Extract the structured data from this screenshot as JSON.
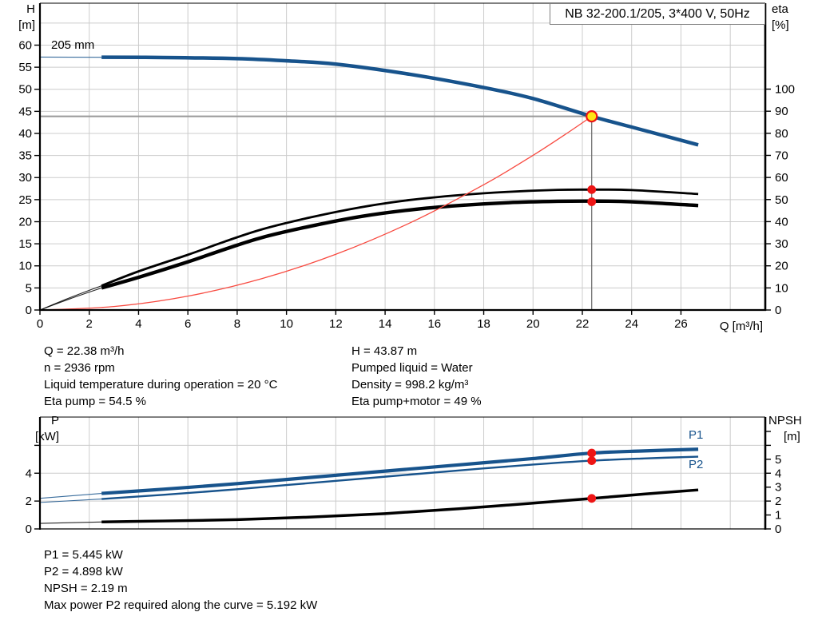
{
  "title_box": {
    "text": "NB 32-200.1/205, 3*400 V, 50Hz"
  },
  "labels": {
    "h_axis": "H",
    "h_unit": "[m]",
    "eta_axis": "eta",
    "eta_unit": "[%]",
    "q_axis": "Q [m³/h]",
    "p_axis": "P",
    "p_unit": "[kW]",
    "npsh_axis": "NPSH",
    "npsh_unit": "[m]",
    "impeller": "205 mm",
    "p1_curve": "P1",
    "p2_curve": "P2"
  },
  "colors": {
    "curve_blue": "#17538c",
    "curve_black": "#000000",
    "system_red": "#f84a40",
    "marker_red": "#ed1515",
    "duty_yellow": "#ffe616",
    "grid": "#cccccc",
    "duty_gray": "#999999",
    "duty_dark": "#666666",
    "axis": "#000000"
  },
  "info_top": {
    "left": [
      "Q = 22.38 m³/h",
      "n = 2936 rpm",
      "Liquid temperature during operation = 20 °C",
      "Eta pump = 54.5 %"
    ],
    "right": [
      "H = 43.87 m",
      "Pumped liquid = Water",
      "Density = 998.2 kg/m³",
      "Eta pump+motor = 49 %"
    ]
  },
  "info_bottom": [
    "P1 = 5.445 kW",
    "P2 = 4.898 kW",
    "NPSH = 2.19 m",
    "Max power P2 required along the curve = 5.192 kW"
  ],
  "chart_data": [
    {
      "type": "line",
      "title": "NB 32-200.1/205, 3*400 V, 50Hz",
      "xlabel": "Q [m³/h]",
      "ylabel_left": "H [m]",
      "ylabel_right": "eta [%]",
      "xlim": [
        0,
        29.42
      ],
      "ylim_left": [
        0,
        69.5
      ],
      "ylim_right": [
        0,
        138.9
      ],
      "grid": true,
      "legend_position": "none",
      "xticks": [
        [
          0,
          "0"
        ],
        [
          2,
          "2"
        ],
        [
          4,
          "4"
        ],
        [
          6,
          "6"
        ],
        [
          8,
          "8"
        ],
        [
          10,
          "10"
        ],
        [
          12,
          "12"
        ],
        [
          14,
          "14"
        ],
        [
          16,
          "16"
        ],
        [
          18,
          "18"
        ],
        [
          20,
          "20"
        ],
        [
          22,
          "22"
        ],
        [
          24,
          "24"
        ],
        [
          26,
          "26"
        ]
      ],
      "yticks_left": [
        [
          0,
          "0"
        ],
        [
          5,
          "5"
        ],
        [
          10,
          "10"
        ],
        [
          15,
          "15"
        ],
        [
          20,
          "20"
        ],
        [
          25,
          "25"
        ],
        [
          30,
          "30"
        ],
        [
          35,
          "35"
        ],
        [
          40,
          "40"
        ],
        [
          45,
          "45"
        ],
        [
          50,
          "50"
        ],
        [
          55,
          "55"
        ],
        [
          60,
          "60"
        ]
      ],
      "yticks_right": [
        [
          0,
          "0"
        ],
        [
          10,
          "10"
        ],
        [
          20,
          "20"
        ],
        [
          30,
          "30"
        ],
        [
          40,
          "40"
        ],
        [
          50,
          "50"
        ],
        [
          60,
          "60"
        ],
        [
          70,
          "70"
        ],
        [
          80,
          "80"
        ],
        [
          90,
          "90"
        ],
        [
          100,
          "100"
        ]
      ],
      "grid_x": [
        2,
        4,
        6,
        8,
        10,
        12,
        14,
        16,
        18,
        20,
        22,
        24,
        26,
        28
      ],
      "grid_y": [
        5,
        10,
        15,
        20,
        25,
        30,
        35,
        40,
        45,
        50,
        55,
        60,
        65
      ],
      "series": [
        {
          "name": "head-curve-205mm",
          "axis": "left",
          "color": "curve_blue",
          "width": 4.5,
          "thin_to": 2.5,
          "points": [
            [
              0,
              57.3
            ],
            [
              2.5,
              57.25
            ],
            [
              5,
              57.2
            ],
            [
              8,
              56.95
            ],
            [
              10,
              56.45
            ],
            [
              12,
              55.7
            ],
            [
              15,
              53.4
            ],
            [
              18,
              50.4
            ],
            [
              20,
              47.9
            ],
            [
              22.38,
              43.87
            ],
            [
              24.5,
              40.7
            ],
            [
              26.7,
              37.4
            ]
          ]
        },
        {
          "name": "eta-pump",
          "axis": "right",
          "color": "curve_black",
          "width": 2.8,
          "thin_to": 2.5,
          "points": [
            [
              0,
              0
            ],
            [
              1.2,
              5.5
            ],
            [
              2.5,
              11
            ],
            [
              4,
              17.5
            ],
            [
              6,
              25
            ],
            [
              7.5,
              31
            ],
            [
              9,
              36.5
            ],
            [
              11,
              42
            ],
            [
              13,
              46.5
            ],
            [
              15,
              49.8
            ],
            [
              17,
              52
            ],
            [
              19,
              53.5
            ],
            [
              21,
              54.4
            ],
            [
              22.38,
              54.5
            ],
            [
              24,
              54.3
            ],
            [
              26.7,
              52.5
            ]
          ]
        },
        {
          "name": "eta-pump-motor",
          "axis": "right",
          "color": "curve_black",
          "width": 4.4,
          "thin_to": 2.5,
          "points": [
            [
              0,
              0
            ],
            [
              1.2,
              5
            ],
            [
              2.5,
              10
            ],
            [
              4,
              14.8
            ],
            [
              6,
              21.8
            ],
            [
              7.5,
              27.5
            ],
            [
              9,
              32.8
            ],
            [
              11,
              38
            ],
            [
              13,
              42.3
            ],
            [
              15,
              45.3
            ],
            [
              17,
              47.3
            ],
            [
              19,
              48.6
            ],
            [
              21,
              49.2
            ],
            [
              22.38,
              49.3
            ],
            [
              24,
              49
            ],
            [
              26.7,
              47.3
            ]
          ]
        },
        {
          "name": "system-curve",
          "axis": "left",
          "color": "system_red",
          "width": 1.3,
          "thin_to": 0,
          "points": [
            [
              0,
              0
            ],
            [
              3,
              0.79
            ],
            [
              6,
              3.15
            ],
            [
              9,
              7.1
            ],
            [
              12,
              12.62
            ],
            [
              15,
              19.71
            ],
            [
              18,
              28.38
            ],
            [
              20,
              35.04
            ],
            [
              21.5,
              40.5
            ],
            [
              22.38,
              43.87
            ]
          ]
        }
      ],
      "duty_lines": [
        {
          "type": "h",
          "v": 43.87,
          "to_x": 22.38
        },
        {
          "type": "v",
          "x": 22.38,
          "from_v": 43.87
        }
      ],
      "markers": [
        {
          "x": 22.38,
          "y": 43.87,
          "axis": "left",
          "style": "duty"
        },
        {
          "x": 22.38,
          "y": 54.5,
          "axis": "right",
          "style": "red"
        },
        {
          "x": 22.38,
          "y": 49,
          "axis": "right",
          "style": "red"
        }
      ],
      "duty_point": {
        "Q": 22.38,
        "H": 43.87,
        "eta_pump": 54.5,
        "eta_pump_motor": 49,
        "impeller": "205 mm"
      }
    },
    {
      "type": "line",
      "title": "",
      "xlabel": "",
      "ylabel_left": "P [kW]",
      "ylabel_right": "NPSH [m]",
      "xlim": [
        0,
        29.42
      ],
      "ylim_left": [
        0,
        8.03
      ],
      "ylim_right": [
        0,
        8.03
      ],
      "grid": true,
      "legend_position": "inline-right",
      "xticks": [],
      "yticks_left": [
        [
          0,
          "0"
        ],
        [
          2,
          "2"
        ],
        [
          4,
          "4"
        ],
        [
          6,
          ""
        ]
      ],
      "yticks_right": [
        [
          0,
          "0"
        ],
        [
          1,
          "1"
        ],
        [
          2,
          "2"
        ],
        [
          3,
          "3"
        ],
        [
          4,
          "4"
        ],
        [
          5,
          "5"
        ],
        [
          6,
          ""
        ],
        [
          7,
          ""
        ]
      ],
      "grid_x": [
        2,
        4,
        6,
        8,
        10,
        12,
        14,
        16,
        18,
        20,
        22,
        24,
        26,
        28
      ],
      "grid_y": [
        2,
        4,
        6
      ],
      "series": [
        {
          "name": "P1",
          "axis": "left",
          "color": "curve_blue",
          "width": 4.2,
          "thin_to": 2.5,
          "points": [
            [
              0,
              2.2
            ],
            [
              2.5,
              2.55
            ],
            [
              5,
              2.85
            ],
            [
              8,
              3.25
            ],
            [
              11,
              3.7
            ],
            [
              14,
              4.15
            ],
            [
              17,
              4.6
            ],
            [
              20,
              5.05
            ],
            [
              22.38,
              5.445
            ],
            [
              24.5,
              5.6
            ],
            [
              26.7,
              5.72
            ]
          ]
        },
        {
          "name": "P2",
          "axis": "left",
          "color": "curve_blue",
          "width": 2.4,
          "thin_to": 2.5,
          "points": [
            [
              0,
              1.9
            ],
            [
              2.5,
              2.15
            ],
            [
              5,
              2.45
            ],
            [
              8,
              2.85
            ],
            [
              11,
              3.3
            ],
            [
              14,
              3.75
            ],
            [
              17,
              4.2
            ],
            [
              20,
              4.62
            ],
            [
              22.38,
              4.898
            ],
            [
              24.5,
              5.06
            ],
            [
              26.7,
              5.19
            ]
          ]
        },
        {
          "name": "NPSH",
          "axis": "right",
          "color": "curve_black",
          "width": 3.5,
          "thin_to": 2.5,
          "points": [
            [
              0,
              0.4
            ],
            [
              2.5,
              0.5
            ],
            [
              5,
              0.57
            ],
            [
              8,
              0.67
            ],
            [
              11,
              0.85
            ],
            [
              14,
              1.1
            ],
            [
              17,
              1.45
            ],
            [
              20,
              1.85
            ],
            [
              22.38,
              2.19
            ],
            [
              24.5,
              2.5
            ],
            [
              26.7,
              2.8
            ]
          ]
        }
      ],
      "duty_lines": [],
      "markers": [
        {
          "x": 22.38,
          "y": 5.445,
          "axis": "left",
          "style": "red"
        },
        {
          "x": 22.38,
          "y": 4.898,
          "axis": "left",
          "style": "red"
        },
        {
          "x": 22.38,
          "y": 2.19,
          "axis": "right",
          "style": "red"
        }
      ],
      "duty_point": {
        "Q": 22.38,
        "P1": 5.445,
        "P2": 4.898,
        "NPSH": 2.19,
        "max_P2_along_curve": 5.192
      }
    }
  ]
}
